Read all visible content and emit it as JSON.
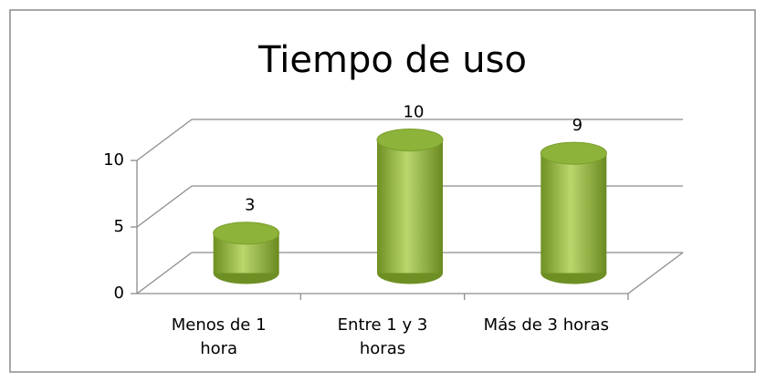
{
  "chart_data": {
    "type": "bar",
    "title": "Tiempo de uso",
    "categories": [
      "Menos de 1 hora",
      "Entre 1 y 3 horas",
      "Más de 3 horas"
    ],
    "values": [
      3,
      10,
      9
    ],
    "color": "#8db33a",
    "ylim": [
      0,
      10
    ],
    "yticks": [
      0,
      5,
      10
    ],
    "grid": true
  }
}
